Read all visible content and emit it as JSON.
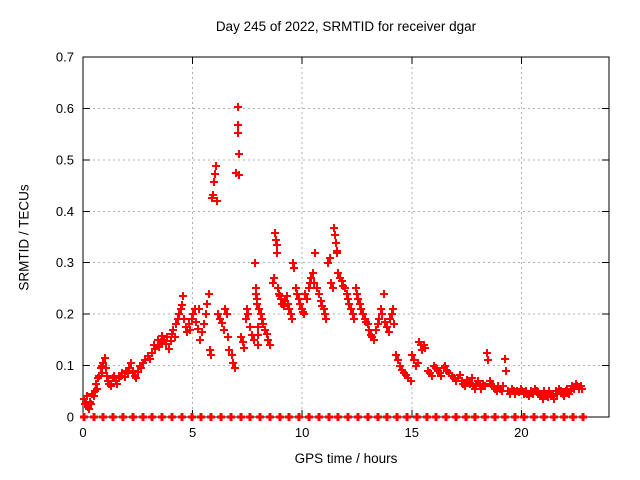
{
  "chart_data": {
    "type": "scatter",
    "title": "Day 245 of 2022, SRMTID for receiver dgar",
    "xlabel": "GPS time / hours",
    "ylabel": "SRMTID / TECUs",
    "xlim": [
      0,
      24
    ],
    "ylim": [
      0,
      0.7
    ],
    "x_ticks": [
      0,
      5,
      10,
      15,
      20
    ],
    "x_tick_labels": [
      "0",
      "5",
      "10",
      "15",
      "20"
    ],
    "y_ticks": [
      0,
      0.1,
      0.2,
      0.3,
      0.4,
      0.5,
      0.6,
      0.7
    ],
    "y_tick_labels": [
      "0",
      "0.1",
      "0.2",
      "0.3",
      "0.4",
      "0.5",
      "0.6",
      "0.7"
    ],
    "grid": true,
    "legend": "none",
    "marker_shape": "plus",
    "marker_color": "#ff0000",
    "grid_color": "#b0b0b0",
    "axis_color": "#000000",
    "background_color": "#ffffff",
    "zero_band": {
      "y": 0,
      "x_min": 0.04,
      "x_max": 22.82,
      "count": 52
    },
    "points": [
      [
        0.05,
        0.035
      ],
      [
        0.08,
        0.025
      ],
      [
        0.12,
        0.03
      ],
      [
        0.18,
        0.04
      ],
      [
        0.22,
        0.02
      ],
      [
        0.28,
        0.015
      ],
      [
        0.33,
        0.03
      ],
      [
        0.38,
        0.025
      ],
      [
        0.42,
        0.045
      ],
      [
        0.5,
        0.04
      ],
      [
        0.55,
        0.05
      ],
      [
        0.6,
        0.065
      ],
      [
        0.65,
        0.055
      ],
      [
        0.7,
        0.075
      ],
      [
        0.75,
        0.08
      ],
      [
        0.8,
        0.095
      ],
      [
        0.85,
        0.1
      ],
      [
        0.88,
        0.085
      ],
      [
        0.93,
        0.105
      ],
      [
        1.0,
        0.115
      ],
      [
        1.05,
        0.095
      ],
      [
        1.1,
        0.08
      ],
      [
        1.15,
        0.07
      ],
      [
        1.2,
        0.065
      ],
      [
        1.28,
        0.06
      ],
      [
        1.35,
        0.075
      ],
      [
        1.42,
        0.08
      ],
      [
        1.5,
        0.07
      ],
      [
        1.57,
        0.065
      ],
      [
        1.65,
        0.075
      ],
      [
        1.72,
        0.08
      ],
      [
        1.8,
        0.085
      ],
      [
        1.9,
        0.078
      ],
      [
        1.95,
        0.09
      ],
      [
        2.05,
        0.085
      ],
      [
        2.12,
        0.095
      ],
      [
        2.2,
        0.105
      ],
      [
        2.28,
        0.09
      ],
      [
        2.35,
        0.08
      ],
      [
        2.42,
        0.075
      ],
      [
        2.5,
        0.088
      ],
      [
        2.58,
        0.1
      ],
      [
        2.65,
        0.095
      ],
      [
        2.75,
        0.105
      ],
      [
        2.85,
        0.11
      ],
      [
        2.95,
        0.118
      ],
      [
        3.05,
        0.112
      ],
      [
        3.15,
        0.125
      ],
      [
        3.25,
        0.14
      ],
      [
        3.3,
        0.132
      ],
      [
        3.4,
        0.15
      ],
      [
        3.47,
        0.136
      ],
      [
        3.48,
        0.138
      ],
      [
        3.55,
        0.145
      ],
      [
        3.62,
        0.158
      ],
      [
        3.7,
        0.15
      ],
      [
        3.78,
        0.142
      ],
      [
        3.85,
        0.155
      ],
      [
        3.92,
        0.132
      ],
      [
        4.0,
        0.147
      ],
      [
        4.05,
        0.162
      ],
      [
        4.1,
        0.17
      ],
      [
        4.18,
        0.155
      ],
      [
        4.25,
        0.18
      ],
      [
        4.32,
        0.19
      ],
      [
        4.4,
        0.2
      ],
      [
        4.45,
        0.21
      ],
      [
        4.5,
        0.218
      ],
      [
        4.55,
        0.235
      ],
      [
        4.62,
        0.19
      ],
      [
        4.7,
        0.175
      ],
      [
        4.75,
        0.165
      ],
      [
        4.82,
        0.18
      ],
      [
        4.9,
        0.17
      ],
      [
        4.97,
        0.19
      ],
      [
        5.03,
        0.2
      ],
      [
        5.1,
        0.21
      ],
      [
        5.17,
        0.185
      ],
      [
        5.25,
        0.172
      ],
      [
        5.3,
        0.21
      ],
      [
        5.35,
        0.15
      ],
      [
        5.42,
        0.165
      ],
      [
        5.5,
        0.18
      ],
      [
        5.6,
        0.2
      ],
      [
        5.68,
        0.22
      ],
      [
        5.75,
        0.24
      ],
      [
        5.8,
        0.13
      ],
      [
        5.85,
        0.12
      ],
      [
        5.9,
        0.426
      ],
      [
        5.93,
        0.432
      ],
      [
        5.96,
        0.457
      ],
      [
        6.0,
        0.472
      ],
      [
        6.05,
        0.488
      ],
      [
        6.1,
        0.42
      ],
      [
        6.18,
        0.2
      ],
      [
        6.27,
        0.19
      ],
      [
        6.35,
        0.182
      ],
      [
        6.42,
        0.17
      ],
      [
        6.5,
        0.21
      ],
      [
        6.55,
        0.2
      ],
      [
        6.6,
        0.155
      ],
      [
        6.68,
        0.13
      ],
      [
        6.78,
        0.12
      ],
      [
        6.85,
        0.105
      ],
      [
        6.93,
        0.095
      ],
      [
        7.0,
        0.474
      ],
      [
        7.05,
        0.603
      ],
      [
        7.07,
        0.568
      ],
      [
        7.08,
        0.552
      ],
      [
        7.1,
        0.511
      ],
      [
        7.12,
        0.47
      ],
      [
        7.2,
        0.155
      ],
      [
        7.28,
        0.145
      ],
      [
        7.35,
        0.135
      ],
      [
        7.42,
        0.19
      ],
      [
        7.5,
        0.21
      ],
      [
        7.55,
        0.2
      ],
      [
        7.63,
        0.175
      ],
      [
        7.7,
        0.16
      ],
      [
        7.78,
        0.15
      ],
      [
        7.85,
        0.3
      ],
      [
        7.88,
        0.25
      ],
      [
        7.9,
        0.24
      ],
      [
        7.93,
        0.23
      ],
      [
        7.95,
        0.22
      ],
      [
        7.97,
        0.175
      ],
      [
        7.98,
        0.16
      ],
      [
        8.0,
        0.14
      ],
      [
        8.05,
        0.21
      ],
      [
        8.1,
        0.2
      ],
      [
        8.15,
        0.19
      ],
      [
        8.22,
        0.18
      ],
      [
        8.3,
        0.17
      ],
      [
        8.38,
        0.162
      ],
      [
        8.45,
        0.15
      ],
      [
        8.55,
        0.14
      ],
      [
        8.65,
        0.26
      ],
      [
        8.7,
        0.27
      ],
      [
        8.78,
        0.357
      ],
      [
        8.8,
        0.345
      ],
      [
        8.83,
        0.334
      ],
      [
        8.86,
        0.319
      ],
      [
        8.9,
        0.25
      ],
      [
        8.95,
        0.24
      ],
      [
        9.0,
        0.235
      ],
      [
        9.05,
        0.23
      ],
      [
        9.1,
        0.22
      ],
      [
        9.15,
        0.215
      ],
      [
        9.22,
        0.225
      ],
      [
        9.3,
        0.235
      ],
      [
        9.35,
        0.22
      ],
      [
        9.42,
        0.21
      ],
      [
        9.5,
        0.2
      ],
      [
        9.55,
        0.19
      ],
      [
        9.6,
        0.3
      ],
      [
        9.63,
        0.29
      ],
      [
        9.7,
        0.25
      ],
      [
        9.78,
        0.24
      ],
      [
        9.85,
        0.23
      ],
      [
        9.92,
        0.22
      ],
      [
        9.97,
        0.21
      ],
      [
        10.03,
        0.205
      ],
      [
        10.1,
        0.2
      ],
      [
        10.15,
        0.24
      ],
      [
        10.22,
        0.23
      ],
      [
        10.3,
        0.25
      ],
      [
        10.35,
        0.26
      ],
      [
        10.42,
        0.27
      ],
      [
        10.5,
        0.28
      ],
      [
        10.55,
        0.26
      ],
      [
        10.6,
        0.319
      ],
      [
        10.68,
        0.25
      ],
      [
        10.75,
        0.24
      ],
      [
        10.85,
        0.225
      ],
      [
        10.92,
        0.215
      ],
      [
        11.0,
        0.21
      ],
      [
        11.05,
        0.2
      ],
      [
        11.1,
        0.19
      ],
      [
        11.18,
        0.3
      ],
      [
        11.25,
        0.31
      ],
      [
        11.32,
        0.26
      ],
      [
        11.4,
        0.25
      ],
      [
        11.45,
        0.368
      ],
      [
        11.5,
        0.354
      ],
      [
        11.55,
        0.338
      ],
      [
        11.58,
        0.322
      ],
      [
        11.6,
        0.318
      ],
      [
        11.65,
        0.28
      ],
      [
        11.72,
        0.27
      ],
      [
        11.8,
        0.265
      ],
      [
        11.88,
        0.255
      ],
      [
        11.95,
        0.25
      ],
      [
        12.03,
        0.24
      ],
      [
        12.1,
        0.23
      ],
      [
        12.15,
        0.22
      ],
      [
        12.22,
        0.21
      ],
      [
        12.3,
        0.2
      ],
      [
        12.38,
        0.19
      ],
      [
        12.45,
        0.25
      ],
      [
        12.5,
        0.24
      ],
      [
        12.57,
        0.23
      ],
      [
        12.63,
        0.22
      ],
      [
        12.7,
        0.21
      ],
      [
        12.78,
        0.2
      ],
      [
        12.85,
        0.19
      ],
      [
        12.93,
        0.185
      ],
      [
        13.0,
        0.18
      ],
      [
        13.05,
        0.17
      ],
      [
        13.12,
        0.16
      ],
      [
        13.2,
        0.155
      ],
      [
        13.28,
        0.15
      ],
      [
        13.35,
        0.17
      ],
      [
        13.45,
        0.18
      ],
      [
        13.52,
        0.19
      ],
      [
        13.6,
        0.21
      ],
      [
        13.65,
        0.2
      ],
      [
        13.72,
        0.24
      ],
      [
        13.8,
        0.185
      ],
      [
        13.88,
        0.175
      ],
      [
        13.95,
        0.165
      ],
      [
        14.02,
        0.19
      ],
      [
        14.08,
        0.2
      ],
      [
        14.13,
        0.21
      ],
      [
        14.2,
        0.18
      ],
      [
        14.3,
        0.12
      ],
      [
        14.38,
        0.11
      ],
      [
        14.45,
        0.1
      ],
      [
        14.55,
        0.092
      ],
      [
        14.65,
        0.085
      ],
      [
        14.75,
        0.082
      ],
      [
        14.85,
        0.075
      ],
      [
        14.95,
        0.07
      ],
      [
        15.03,
        0.12
      ],
      [
        15.1,
        0.11
      ],
      [
        15.18,
        0.1
      ],
      [
        15.27,
        0.105
      ],
      [
        15.35,
        0.146
      ],
      [
        15.4,
        0.14
      ],
      [
        15.48,
        0.13
      ],
      [
        15.55,
        0.14
      ],
      [
        15.62,
        0.135
      ],
      [
        15.72,
        0.09
      ],
      [
        15.82,
        0.085
      ],
      [
        15.92,
        0.08
      ],
      [
        16.02,
        0.1
      ],
      [
        16.1,
        0.095
      ],
      [
        16.18,
        0.09
      ],
      [
        16.27,
        0.085
      ],
      [
        16.35,
        0.08
      ],
      [
        16.45,
        0.095
      ],
      [
        16.53,
        0.1
      ],
      [
        16.62,
        0.09
      ],
      [
        16.72,
        0.085
      ],
      [
        16.82,
        0.08
      ],
      [
        16.92,
        0.075
      ],
      [
        17.02,
        0.07
      ],
      [
        17.1,
        0.075
      ],
      [
        17.18,
        0.082
      ],
      [
        17.27,
        0.07
      ],
      [
        17.35,
        0.065
      ],
      [
        17.45,
        0.06
      ],
      [
        17.5,
        0.072
      ],
      [
        17.55,
        0.068
      ],
      [
        17.6,
        0.07
      ],
      [
        17.68,
        0.065
      ],
      [
        17.73,
        0.075
      ],
      [
        17.8,
        0.06
      ],
      [
        17.88,
        0.055
      ],
      [
        17.95,
        0.065
      ],
      [
        18.02,
        0.07
      ],
      [
        18.1,
        0.06
      ],
      [
        18.18,
        0.055
      ],
      [
        18.27,
        0.065
      ],
      [
        18.35,
        0.06
      ],
      [
        18.45,
        0.124
      ],
      [
        18.5,
        0.11
      ],
      [
        18.55,
        0.07
      ],
      [
        18.63,
        0.065
      ],
      [
        18.72,
        0.06
      ],
      [
        18.8,
        0.055
      ],
      [
        18.88,
        0.05
      ],
      [
        18.95,
        0.06
      ],
      [
        19.03,
        0.055
      ],
      [
        19.1,
        0.05
      ],
      [
        19.18,
        0.06
      ],
      [
        19.27,
        0.112
      ],
      [
        19.32,
        0.09
      ],
      [
        19.4,
        0.05
      ],
      [
        19.48,
        0.045
      ],
      [
        19.57,
        0.055
      ],
      [
        19.65,
        0.05
      ],
      [
        19.73,
        0.045
      ],
      [
        19.82,
        0.05
      ],
      [
        19.9,
        0.048
      ],
      [
        19.97,
        0.055
      ],
      [
        20.05,
        0.05
      ],
      [
        20.12,
        0.045
      ],
      [
        20.2,
        0.05
      ],
      [
        20.28,
        0.045
      ],
      [
        20.37,
        0.04
      ],
      [
        20.45,
        0.05
      ],
      [
        20.53,
        0.045
      ],
      [
        20.62,
        0.055
      ],
      [
        20.7,
        0.05
      ],
      [
        20.78,
        0.045
      ],
      [
        20.85,
        0.042
      ],
      [
        20.93,
        0.04
      ],
      [
        20.97,
        0.035
      ],
      [
        21.03,
        0.05
      ],
      [
        21.1,
        0.045
      ],
      [
        21.15,
        0.04
      ],
      [
        21.2,
        0.038
      ],
      [
        21.28,
        0.05
      ],
      [
        21.35,
        0.045
      ],
      [
        21.43,
        0.04
      ],
      [
        21.5,
        0.035
      ],
      [
        21.58,
        0.05
      ],
      [
        21.65,
        0.045
      ],
      [
        21.73,
        0.055
      ],
      [
        21.8,
        0.05
      ],
      [
        21.88,
        0.045
      ],
      [
        21.95,
        0.04
      ],
      [
        22.02,
        0.05
      ],
      [
        22.1,
        0.055
      ],
      [
        22.17,
        0.045
      ],
      [
        22.25,
        0.05
      ],
      [
        22.33,
        0.06
      ],
      [
        22.4,
        0.055
      ],
      [
        22.48,
        0.065
      ],
      [
        22.55,
        0.06
      ],
      [
        22.63,
        0.055
      ],
      [
        22.7,
        0.06
      ],
      [
        22.78,
        0.055
      ]
    ]
  }
}
